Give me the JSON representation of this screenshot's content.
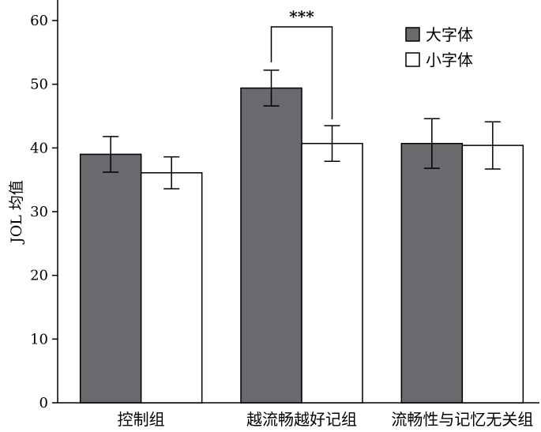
{
  "chart_data": {
    "type": "bar",
    "categories": [
      "控制组",
      "越流畅越好记组",
      "流畅性与记忆无关组"
    ],
    "series": [
      {
        "name": "大字体",
        "color": "#6a6a6e",
        "values": [
          39.0,
          49.4,
          40.7
        ],
        "error": [
          2.8,
          2.8,
          3.9
        ]
      },
      {
        "name": "小字体",
        "color": "#ffffff",
        "values": [
          36.1,
          40.7,
          40.4
        ],
        "error": [
          2.5,
          2.8,
          3.7
        ]
      }
    ],
    "xlabel": "",
    "ylabel": "JOL 均值",
    "ylim": [
      0,
      60
    ],
    "yticks": [
      0,
      10,
      20,
      30,
      40,
      50,
      60
    ],
    "grid": false,
    "legend_position": "top-right",
    "annotations": [
      {
        "text": "***",
        "category_index": 1,
        "between_series": [
          0,
          1
        ]
      }
    ]
  }
}
